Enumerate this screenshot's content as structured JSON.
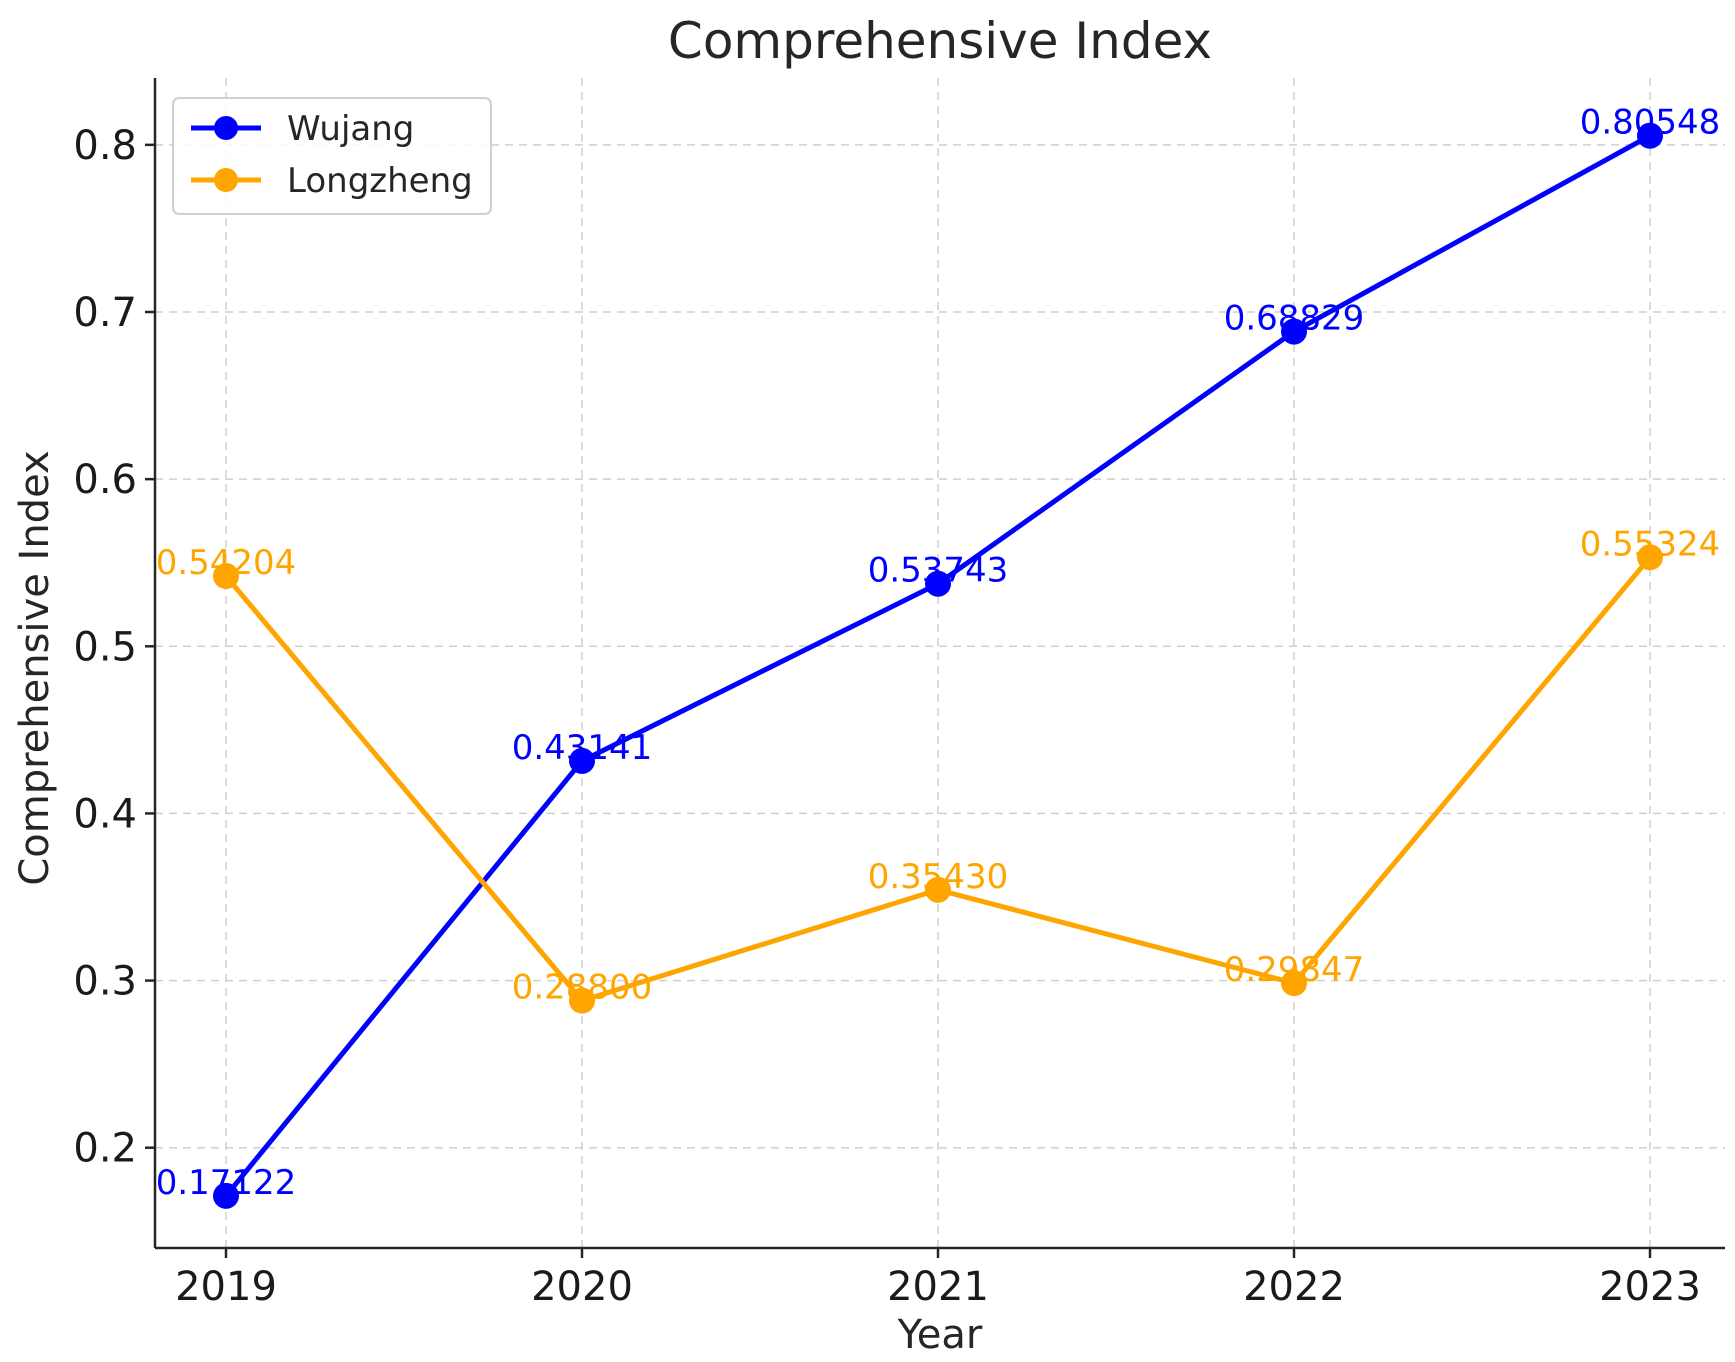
{
  "chart_data": {
    "type": "line",
    "title": "Comprehensive Index",
    "xlabel": "Year",
    "ylabel": "Comprehensive Index",
    "categories": [
      "2019",
      "2020",
      "2021",
      "2022",
      "2023"
    ],
    "ylim": [
      0.14,
      0.84
    ],
    "yticks": [
      0.2,
      0.3,
      0.4,
      0.5,
      0.6,
      0.7,
      0.8
    ],
    "ytick_labels": [
      "0.2",
      "0.3",
      "0.4",
      "0.5",
      "0.6",
      "0.7",
      "0.8"
    ],
    "grid": true,
    "legend_position": "top-left",
    "series": [
      {
        "name": "Wujang",
        "color": "#0000ff",
        "values": [
          0.17122,
          0.43141,
          0.53743,
          0.68829,
          0.80548
        ],
        "labels": [
          "0.17122",
          "0.43141",
          "0.53743",
          "0.68829",
          "0.80548"
        ]
      },
      {
        "name": "Longzheng",
        "color": "#ffa500",
        "values": [
          0.54204,
          0.288,
          0.3543,
          0.29847,
          0.55324
        ],
        "labels": [
          "0.54204",
          "0.28800",
          "0.35430",
          "0.29847",
          "0.55324"
        ]
      }
    ]
  }
}
